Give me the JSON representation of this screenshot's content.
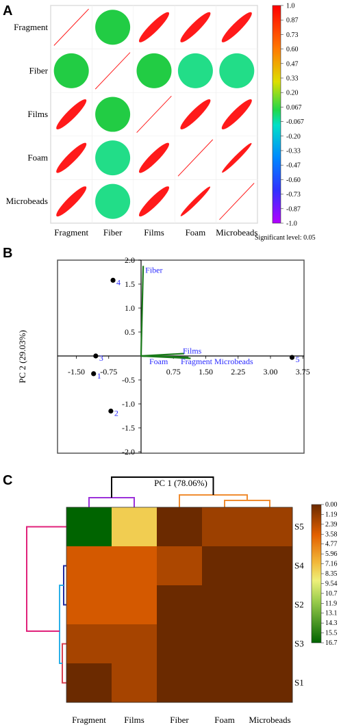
{
  "panels": {
    "a": "A",
    "b": "B",
    "c": "C"
  },
  "chart_data": [
    {
      "type": "heatmap",
      "subtype": "correlation-ellipse",
      "variables": [
        "Fragment",
        "Fiber",
        "Films",
        "Foam",
        "Microbeads"
      ],
      "matrix": [
        [
          1.0,
          0.15,
          0.95,
          0.95,
          0.95
        ],
        [
          0.15,
          1.0,
          0.15,
          0.12,
          0.1
        ],
        [
          0.95,
          0.15,
          1.0,
          0.95,
          0.95
        ],
        [
          0.95,
          0.12,
          0.95,
          1.0,
          1.0
        ],
        [
          0.95,
          0.1,
          0.95,
          1.0,
          1.0
        ]
      ],
      "colorbar": {
        "ticks": [
          "1.0",
          "0.87",
          "0.73",
          "0.60",
          "0.47",
          "0.33",
          "0.20",
          "0.067",
          "-0.067",
          "-0.20",
          "-0.33",
          "-0.47",
          "-0.60",
          "-0.73",
          "-0.87",
          "-1.0"
        ],
        "range": [
          -1.0,
          1.0
        ]
      },
      "note": "Significant level: 0.05"
    },
    {
      "type": "scatter",
      "subtype": "pca-biplot",
      "xlabel": "PC 1 (78.06%)",
      "ylabel": "PC 2 (29.03%)",
      "xlim": [
        -2.0,
        4.0
      ],
      "ylim": [
        -2.0,
        2.0
      ],
      "xticks": [
        "-1.50",
        "-0.75",
        "0.75",
        "1.50",
        "2.25",
        "3.00",
        "3.75"
      ],
      "yticks": [
        "2.0",
        "1.5",
        "1.0",
        "0.5",
        "-0.5",
        "-1.0",
        "-1.5",
        "-2.0"
      ],
      "points": [
        {
          "label": "1",
          "x": -1.1,
          "y": -0.37
        },
        {
          "label": "2",
          "x": -0.7,
          "y": -1.15
        },
        {
          "label": "3",
          "x": -1.05,
          "y": 0.0
        },
        {
          "label": "4",
          "x": -0.65,
          "y": 1.58
        },
        {
          "label": "5",
          "x": 3.5,
          "y": -0.03
        }
      ],
      "loadings": [
        {
          "label": "Fiber",
          "x": 0.05,
          "y": 1.88
        },
        {
          "label": "Films",
          "x": 1.0,
          "y": 0.05
        },
        {
          "label": "Foam",
          "x": 0.9,
          "y": -0.02
        },
        {
          "label": "Fragment",
          "x": 1.1,
          "y": -0.03
        },
        {
          "label": "Microbeads",
          "x": 1.15,
          "y": -0.05
        }
      ],
      "loading_labels": {
        "Fiber": "Fiber",
        "Films": "Films",
        "Foam": "Foam",
        "overlap": "Fragment Microbeads"
      }
    },
    {
      "type": "heatmap",
      "subtype": "clustered",
      "columns": [
        "Fragment",
        "Films",
        "Fiber",
        "Foam",
        "Microbeads"
      ],
      "rows": [
        "S5",
        "S4",
        "S2",
        "S3",
        "S1"
      ],
      "values": [
        [
          16.7,
          7.8,
          0.0,
          1.5,
          1.5
        ],
        [
          3.2,
          3.2,
          2.0,
          0.0,
          0.0
        ],
        [
          3.2,
          3.2,
          0.0,
          0.0,
          0.0
        ],
        [
          1.8,
          1.8,
          0.0,
          0.0,
          0.0
        ],
        [
          0.0,
          1.8,
          0.0,
          0.0,
          0.0
        ]
      ],
      "colorbar": {
        "ticks": [
          "0.00",
          "1.19",
          "2.39",
          "3.58",
          "4.77",
          "5.96",
          "7.16",
          "8.35",
          "9.54",
          "10.7",
          "11.9",
          "13.1",
          "14.3",
          "15.5",
          "16.7"
        ],
        "range": [
          0.0,
          16.7
        ]
      }
    }
  ]
}
